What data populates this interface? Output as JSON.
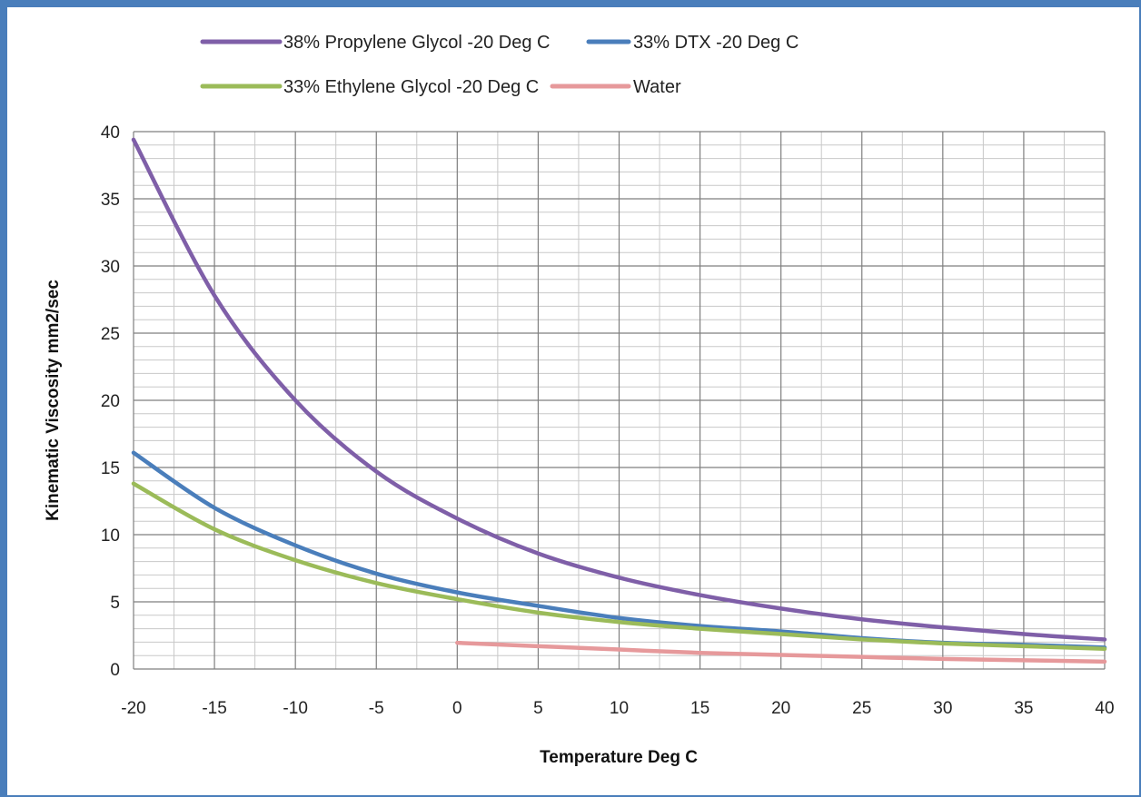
{
  "chart_data": {
    "type": "line",
    "title": "",
    "xlabel": "Temperature Deg C",
    "ylabel": "Kinematic Viscosity mm2/sec",
    "xlim": [
      -20,
      40
    ],
    "ylim": [
      0,
      40
    ],
    "x_ticks": [
      "-20",
      "-15",
      "-10",
      "-5",
      "0",
      "5",
      "10",
      "15",
      "20",
      "25",
      "30",
      "35",
      "40"
    ],
    "y_ticks": [
      "0",
      "5",
      "10",
      "15",
      "20",
      "25",
      "30",
      "35",
      "40"
    ],
    "grid": "on",
    "legend_position": "top",
    "series": [
      {
        "name": "38% Propylene Glycol -20 Deg C",
        "color": "#7f5fa8",
        "x": [
          -20,
          -15,
          -10,
          -5,
          0,
          5,
          10,
          15,
          20,
          25,
          30,
          35,
          40
        ],
        "values": [
          39.4,
          27.8,
          20.0,
          14.7,
          11.2,
          8.6,
          6.8,
          5.5,
          4.5,
          3.7,
          3.1,
          2.6,
          2.2
        ]
      },
      {
        "name": "33% DTX -20 Deg C",
        "color": "#4a7ebb",
        "x": [
          -20,
          -15,
          -10,
          -5,
          0,
          5,
          10,
          15,
          20,
          25,
          30,
          35,
          40
        ],
        "values": [
          16.1,
          12.0,
          9.2,
          7.1,
          5.7,
          4.7,
          3.8,
          3.2,
          2.8,
          2.3,
          1.95,
          1.8,
          1.6
        ]
      },
      {
        "name": "33% Ethylene Glycol -20 Deg C",
        "color": "#9bbb59",
        "x": [
          -20,
          -15,
          -10,
          -5,
          0,
          5,
          10,
          15,
          20,
          25,
          30,
          35,
          40
        ],
        "values": [
          13.8,
          10.4,
          8.1,
          6.4,
          5.2,
          4.2,
          3.5,
          3.0,
          2.6,
          2.2,
          1.9,
          1.7,
          1.5
        ]
      },
      {
        "name": "Water",
        "color": "#e6999b",
        "x": [
          0,
          5,
          10,
          15,
          20,
          25,
          30,
          35,
          40
        ],
        "values": [
          1.95,
          1.7,
          1.45,
          1.2,
          1.05,
          0.9,
          0.75,
          0.65,
          0.55
        ]
      }
    ]
  }
}
